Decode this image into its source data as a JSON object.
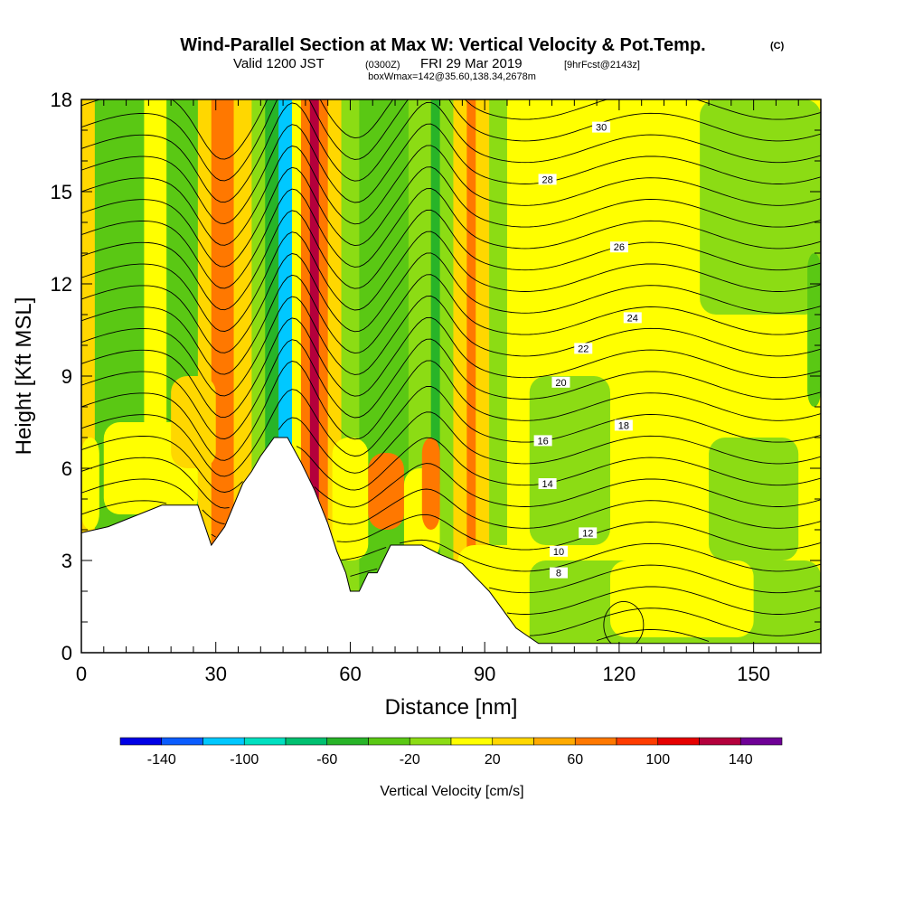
{
  "chart_data": {
    "type": "heatmap",
    "title": "Wind-Parallel Section at Max W: Vertical Velocity & Pot.Temp.",
    "title_mark": "(C)",
    "subtitle": {
      "valid": "Valid 1200 JST",
      "utc": "(0300Z)",
      "date": "FRI 29 Mar 2019",
      "fcst": "[9hrFcst@2143z]"
    },
    "box_info": "boxWmax=142@35.60,138.34,2678m",
    "xlabel": "Distance [nm]",
    "ylabel": "Height [Kft MSL]",
    "xlim": [
      0,
      165
    ],
    "ylim": [
      0,
      18
    ],
    "x_ticks": [
      0,
      30,
      60,
      90,
      120,
      150
    ],
    "y_ticks": [
      0,
      3,
      6,
      9,
      12,
      15,
      18
    ],
    "colorbar": {
      "label": "Vertical Velocity [cm/s]",
      "tick_values": [
        -140,
        -100,
        -60,
        -20,
        20,
        60,
        100,
        140
      ],
      "bounds": [
        -160,
        -140,
        -120,
        -100,
        -80,
        -60,
        -40,
        -20,
        0,
        20,
        40,
        60,
        80,
        100,
        120,
        140,
        160
      ],
      "colors": [
        "#0000e6",
        "#0a5cff",
        "#00c8ff",
        "#00e0c0",
        "#00c070",
        "#28b428",
        "#5ac814",
        "#8cdc14",
        "#ffff00",
        "#ffd700",
        "#ffaa00",
        "#ff7800",
        "#ff3c00",
        "#e60000",
        "#b4003c",
        "#6e0096"
      ]
    },
    "velocity_bands": [
      {
        "x": [
          0,
          3
        ],
        "w": 30
      },
      {
        "x": [
          3,
          14
        ],
        "w": -30
      },
      {
        "x": [
          14,
          19
        ],
        "w": 10
      },
      {
        "x": [
          19,
          26
        ],
        "w": -30
      },
      {
        "x": [
          26,
          29
        ],
        "w": 30
      },
      {
        "x": [
          29,
          34
        ],
        "w": 60
      },
      {
        "x": [
          34,
          38
        ],
        "w": 30
      },
      {
        "x": [
          38,
          41
        ],
        "w": -10
      },
      {
        "x": [
          41,
          44
        ],
        "w": -60
      },
      {
        "x": [
          44,
          47
        ],
        "w": -110
      },
      {
        "x": [
          47,
          49
        ],
        "w": 10
      },
      {
        "x": [
          49,
          51
        ],
        "w": 70
      },
      {
        "x": [
          51,
          53
        ],
        "w": 130
      },
      {
        "x": [
          53,
          55
        ],
        "w": 70
      },
      {
        "x": [
          55,
          58
        ],
        "w": 30
      },
      {
        "x": [
          58,
          62
        ],
        "w": -10
      },
      {
        "x": [
          62,
          73
        ],
        "w": -30
      },
      {
        "x": [
          73,
          78
        ],
        "w": -10
      },
      {
        "x": [
          78,
          80
        ],
        "w": -60
      },
      {
        "x": [
          80,
          83
        ],
        "w": -10
      },
      {
        "x": [
          83,
          86
        ],
        "w": 30
      },
      {
        "x": [
          86,
          88
        ],
        "w": 70
      },
      {
        "x": [
          88,
          91
        ],
        "w": 30
      },
      {
        "x": [
          91,
          95
        ],
        "w": -10
      },
      {
        "x": [
          95,
          165
        ],
        "w": 10
      }
    ],
    "velocity_patches": [
      {
        "x": [
          0,
          4
        ],
        "y": [
          4,
          7
        ],
        "w": 10
      },
      {
        "x": [
          5,
          26
        ],
        "y": [
          4.5,
          7.5
        ],
        "w": 10
      },
      {
        "x": [
          20,
          30
        ],
        "y": [
          6,
          9
        ],
        "w": 30
      },
      {
        "x": [
          56,
          64
        ],
        "y": [
          3,
          7
        ],
        "w": 10
      },
      {
        "x": [
          64,
          72
        ],
        "y": [
          4,
          6.5
        ],
        "w": 60
      },
      {
        "x": [
          72,
          80
        ],
        "y": [
          3,
          6
        ],
        "w": 10
      },
      {
        "x": [
          76,
          80
        ],
        "y": [
          4,
          7
        ],
        "w": 70
      },
      {
        "x": [
          84,
          100
        ],
        "y": [
          1,
          3.5
        ],
        "w": 10
      },
      {
        "x": [
          100,
          165
        ],
        "y": [
          0,
          3
        ],
        "w": -10
      },
      {
        "x": [
          118,
          150
        ],
        "y": [
          0.5,
          3
        ],
        "w": 10
      },
      {
        "x": [
          100,
          118
        ],
        "y": [
          3.5,
          9
        ],
        "w": -10
      },
      {
        "x": [
          140,
          160
        ],
        "y": [
          3,
          7
        ],
        "w": -10
      },
      {
        "x": [
          104,
          140
        ],
        "y": [
          9,
          18
        ],
        "w": 10
      },
      {
        "x": [
          138,
          165
        ],
        "y": [
          11,
          18
        ],
        "w": -10
      },
      {
        "x": [
          162,
          165
        ],
        "y": [
          8,
          13
        ],
        "w": -30
      }
    ],
    "terrain": [
      [
        0,
        3.9
      ],
      [
        6,
        4.1
      ],
      [
        18,
        4.8
      ],
      [
        26,
        4.8
      ],
      [
        29,
        3.5
      ],
      [
        32,
        4.1
      ],
      [
        36,
        5.5
      ],
      [
        38,
        5.9
      ],
      [
        40,
        6.4
      ],
      [
        43,
        7
      ],
      [
        46,
        7
      ],
      [
        49,
        6.2
      ],
      [
        52,
        5.3
      ],
      [
        55,
        4.2
      ],
      [
        57,
        3.3
      ],
      [
        59,
        2.6
      ],
      [
        60,
        2
      ],
      [
        62,
        2
      ],
      [
        64,
        2.6
      ],
      [
        66,
        2.6
      ],
      [
        69,
        3.5
      ],
      [
        76,
        3.5
      ],
      [
        80,
        3.2
      ],
      [
        85,
        2.9
      ],
      [
        89,
        2.3
      ],
      [
        91,
        2
      ],
      [
        93,
        1.6
      ],
      [
        95,
        1.2
      ],
      [
        97,
        0.8
      ],
      [
        99,
        0.6
      ],
      [
        102,
        0.3
      ],
      [
        165,
        0.3
      ]
    ],
    "theta_contours": [
      {
        "value": 8,
        "label_at": [
          106.5,
          2.6
        ]
      },
      {
        "value": 10,
        "label_at": [
          106.5,
          3.3
        ]
      },
      {
        "value": 12,
        "label_at": [
          113,
          3.9
        ]
      },
      {
        "value": 14,
        "label_at": [
          104,
          5.5
        ]
      },
      {
        "value": 16,
        "label_at": [
          103,
          6.9
        ]
      },
      {
        "value": 18,
        "label_at": [
          121,
          7.4
        ]
      },
      {
        "value": 20,
        "label_at": [
          107,
          8.8
        ]
      },
      {
        "value": 22,
        "label_at": [
          112,
          9.9
        ]
      },
      {
        "value": 24,
        "label_at": [
          123,
          10.9
        ]
      },
      {
        "value": 26,
        "label_at": [
          120,
          13.2
        ]
      },
      {
        "value": 28,
        "label_at": [
          104,
          15.4
        ]
      },
      {
        "value": 30,
        "label_at": [
          116,
          17.1
        ]
      }
    ]
  }
}
